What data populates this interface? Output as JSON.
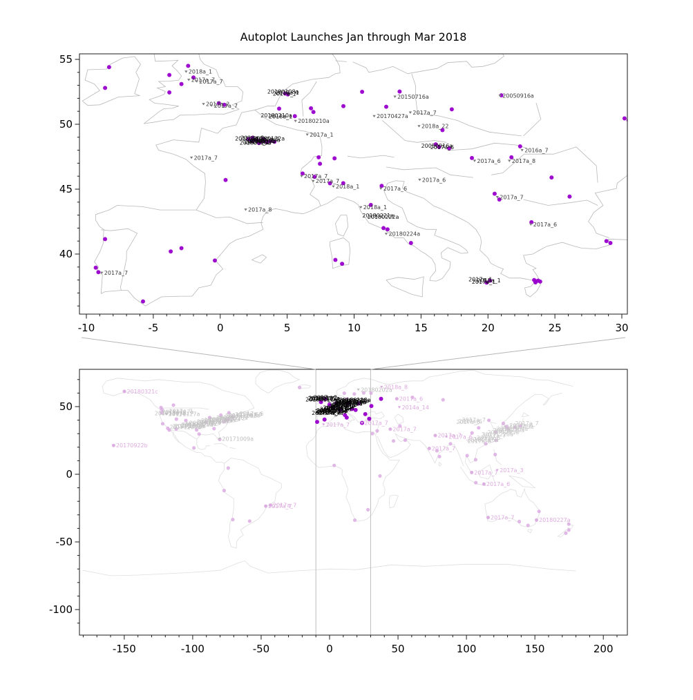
{
  "title": "Autoplot Launches Jan through Mar 2018",
  "chart_data": [
    {
      "type": "scatter",
      "name": "europe-detail-map",
      "title": "Autoplot Launches Jan through Mar 2018",
      "xlabel": "",
      "ylabel": "",
      "xlim": [
        -10.5,
        30.4
      ],
      "ylim": [
        35.4,
        55.4
      ],
      "xticks": [
        -10,
        -5,
        0,
        5,
        10,
        15,
        20,
        25,
        30
      ],
      "yticks": [
        40,
        45,
        50,
        55
      ],
      "grid": false,
      "marker_color": "#9900cc",
      "label_color": "#3a3a3a",
      "dots": [
        [
          -8.3,
          54.4
        ],
        [
          -8.6,
          52.8
        ],
        [
          -2.4,
          54.5
        ],
        [
          -3.8,
          53.8
        ],
        [
          -2.9,
          53.1
        ],
        [
          -3.8,
          52.45
        ],
        [
          -2.0,
          53.6
        ],
        [
          0.3,
          51.5
        ],
        [
          -0.1,
          51.62
        ],
        [
          4.85,
          52.37
        ],
        [
          5.05,
          52.3
        ],
        [
          4.4,
          51.2
        ],
        [
          5.57,
          50.63
        ],
        [
          6.78,
          51.23
        ],
        [
          6.96,
          50.94
        ],
        [
          9.2,
          51.4
        ],
        [
          10.6,
          52.5
        ],
        [
          12.4,
          51.35
        ],
        [
          13.4,
          52.52
        ],
        [
          17.3,
          51.15
        ],
        [
          16.6,
          49.55
        ],
        [
          21.0,
          52.23
        ],
        [
          7.35,
          47.45
        ],
        [
          7.45,
          46.95
        ],
        [
          8.54,
          47.37
        ],
        [
          0.4,
          45.7
        ],
        [
          8.2,
          45.45
        ],
        [
          9.19,
          45.46
        ],
        [
          12.06,
          45.25
        ],
        [
          11.25,
          43.78
        ],
        [
          12.2,
          42.0
        ],
        [
          12.5,
          41.9
        ],
        [
          14.25,
          40.85
        ],
        [
          9.1,
          39.25
        ],
        [
          8.6,
          39.55
        ],
        [
          24.75,
          45.9
        ],
        [
          26.1,
          44.43
        ],
        [
          23.25,
          42.45
        ],
        [
          28.85,
          41.0
        ],
        [
          29.15,
          40.85
        ],
        [
          30.2,
          50.45
        ],
        [
          30.5,
          50.3
        ],
        [
          -3.7,
          40.2
        ],
        [
          -2.9,
          40.45
        ],
        [
          -0.4,
          39.5
        ],
        [
          -5.77,
          36.35
        ],
        [
          -8.6,
          41.15
        ],
        [
          -9.3,
          38.95
        ],
        [
          -9.1,
          38.6
        ],
        [
          16.35,
          48.25
        ],
        [
          17.1,
          48.15
        ],
        [
          16.1,
          48.45
        ],
        [
          18.8,
          47.4
        ],
        [
          21.75,
          47.45
        ],
        [
          22.4,
          48.3
        ],
        [
          20.5,
          44.65
        ],
        [
          20.85,
          44.2
        ],
        [
          19.9,
          37.8
        ],
        [
          20.15,
          37.95
        ],
        [
          23.45,
          38.0
        ],
        [
          23.6,
          37.9
        ],
        [
          23.75,
          37.95
        ],
        [
          23.55,
          37.82
        ],
        [
          23.9,
          37.88
        ],
        [
          6.15,
          46.2
        ],
        [
          7.05,
          45.95
        ],
        [
          2.1,
          48.85
        ],
        [
          2.4,
          48.95
        ],
        [
          2.6,
          48.8
        ],
        [
          2.8,
          48.72
        ],
        [
          3.05,
          48.66
        ],
        [
          3.3,
          48.72
        ],
        [
          3.5,
          48.62
        ],
        [
          3.75,
          48.7
        ],
        [
          2.35,
          48.7
        ],
        [
          2.9,
          48.55
        ],
        [
          3.2,
          48.85
        ],
        [
          4.05,
          48.65
        ]
      ],
      "labels": [
        [
          -2.55,
          54.05,
          "2018a_1"
        ],
        [
          -2.35,
          53.42,
          "2017a_7"
        ],
        [
          -1.75,
          53.3,
          "2017a_7"
        ],
        [
          -1.25,
          51.55,
          "2017a_2"
        ],
        [
          -0.65,
          51.43,
          "2017a_7"
        ],
        [
          -2.15,
          47.42,
          "2017a_7"
        ],
        [
          5.62,
          50.25,
          "20180210a"
        ],
        [
          6.5,
          49.2,
          "2017a_1"
        ],
        [
          6.08,
          46.0,
          "2017a_7"
        ],
        [
          6.95,
          45.62,
          "2017a_7"
        ],
        [
          8.45,
          45.2,
          "2018a_1"
        ],
        [
          10.5,
          43.6,
          "2018a_1"
        ],
        [
          12.4,
          41.55,
          "20180224a"
        ],
        [
          1.9,
          43.42,
          "2017a_8"
        ],
        [
          13.05,
          52.12,
          "20150716a"
        ],
        [
          11.5,
          50.62,
          "20170427a"
        ],
        [
          14.2,
          50.9,
          "2017a_7"
        ],
        [
          14.85,
          49.85,
          "2018a_22"
        ],
        [
          20.9,
          52.2,
          "20050916a"
        ],
        [
          22.55,
          48.0,
          "2016a_7"
        ],
        [
          19.0,
          47.18,
          "2017a_6"
        ],
        [
          21.6,
          47.18,
          "2017a_8"
        ],
        [
          20.7,
          44.38,
          "2017a_7"
        ],
        [
          23.2,
          42.28,
          "2017a_6"
        ],
        [
          14.9,
          45.72,
          "2017a_6"
        ],
        [
          12.0,
          45.05,
          "2017a_6"
        ],
        [
          -8.85,
          38.55,
          "2017a_7"
        ]
      ],
      "clusters": [
        {
          "lon": 3.0,
          "lat": 48.62,
          "w": 28,
          "h": 8,
          "color": "#0a0a0a",
          "labels": [
            "20180117a",
            "2018a_1",
            "20180118a",
            "2017a_7",
            "20180119a",
            "2018a_2",
            "20180120a",
            "2017a_1",
            "20180122a",
            "2018a_12"
          ]
        },
        {
          "lon": 4.95,
          "lat": 52.3,
          "w": 10,
          "h": 4,
          "color": "#111111",
          "labels": [
            "20180108a",
            "2018a_1",
            "2017a_7"
          ]
        },
        {
          "lon": 4.45,
          "lat": 50.45,
          "w": 10,
          "h": 4,
          "color": "#111111",
          "labels": [
            "20180210a",
            "2018a_1"
          ]
        },
        {
          "lon": 16.5,
          "lat": 48.1,
          "w": 12,
          "h": 5,
          "color": "#111111",
          "labels": [
            "20050916a",
            "2017a_6"
          ]
        },
        {
          "lon": 12.1,
          "lat": 42.72,
          "w": 12,
          "h": 5,
          "color": "#111111",
          "labels": [
            "20180221a",
            "20180222a"
          ]
        },
        {
          "lon": 19.95,
          "lat": 37.82,
          "w": 20,
          "h": 5,
          "color": "#0a0a0a",
          "labels": [
            "2017a_1",
            "2018a_1",
            "2017a_1"
          ]
        }
      ]
    },
    {
      "type": "scatter",
      "name": "world-context-map",
      "xlim": [
        -183,
        218
      ],
      "ylim": [
        -119,
        78
      ],
      "xticks": [
        -150,
        -100,
        -50,
        0,
        50,
        100,
        150,
        200
      ],
      "yticks": [
        50,
        0,
        -50,
        -100
      ],
      "grid": false,
      "zoom_region_lon": [
        -10,
        30
      ],
      "marker_color_active": "#9900cc",
      "marker_color_faded": "#d9a7e0",
      "label_color_faded": "#ddaade",
      "label_color_gray": "#bdbdbd",
      "dots_active": [
        [
          -9.1,
          38.7
        ],
        [
          -6.26,
          53.35
        ],
        [
          -3.7,
          40.42
        ],
        [
          -3.19,
          55.6
        ],
        [
          -0.1,
          51.5
        ],
        [
          2.35,
          48.86
        ],
        [
          4.9,
          52.37
        ],
        [
          7.6,
          47.56
        ],
        [
          13.4,
          52.52
        ],
        [
          12.5,
          41.9
        ],
        [
          16.37,
          48.21
        ],
        [
          19.05,
          47.5
        ],
        [
          21.0,
          52.23
        ],
        [
          23.73,
          37.98
        ],
        [
          26.1,
          44.43
        ],
        [
          28.98,
          41.02
        ],
        [
          30.52,
          50.45
        ],
        [
          37.62,
          55.75
        ],
        [
          11.25,
          43.78
        ]
      ],
      "dots_faded": [
        [
          -149.9,
          61.2
        ],
        [
          -157.8,
          21.3
        ],
        [
          -123.1,
          49.28
        ],
        [
          -122.33,
          47.6
        ],
        [
          -122.68,
          45.52
        ],
        [
          -121.89,
          37.34
        ],
        [
          -118.24,
          34.05
        ],
        [
          -117.16,
          32.72
        ],
        [
          -111.89,
          40.76
        ],
        [
          -104.99,
          39.74
        ],
        [
          -112.07,
          33.45
        ],
        [
          -114.07,
          51.05
        ],
        [
          -97.14,
          32.75
        ],
        [
          -95.37,
          29.76
        ],
        [
          -90.2,
          38.63
        ],
        [
          -87.63,
          41.88
        ],
        [
          -84.39,
          33.75
        ],
        [
          -80.19,
          25.76
        ],
        [
          -79.38,
          43.65
        ],
        [
          -77.04,
          38.9
        ],
        [
          -75.17,
          39.95
        ],
        [
          -74.01,
          40.71
        ],
        [
          -71.06,
          42.36
        ],
        [
          -73.57,
          45.5
        ],
        [
          -99.13,
          19.43
        ],
        [
          -74.07,
          4.61
        ],
        [
          -77.03,
          -12.04
        ],
        [
          -46.63,
          -23.55
        ],
        [
          -43.2,
          -22.9
        ],
        [
          -58.38,
          -34.6
        ],
        [
          -70.65,
          -33.45
        ],
        [
          10.75,
          59.91
        ],
        [
          18.07,
          59.33
        ],
        [
          24.94,
          60.17
        ],
        [
          12.57,
          55.69
        ],
        [
          -21.9,
          64.15
        ],
        [
          30.3,
          59.94
        ],
        [
          31.24,
          30.06
        ],
        [
          34.78,
          32.08
        ],
        [
          36.82,
          -1.29
        ],
        [
          3.38,
          6.52
        ],
        [
          28.05,
          -26.2
        ],
        [
          18.42,
          -33.93
        ],
        [
          51.39,
          35.69
        ],
        [
          55.27,
          25.2
        ],
        [
          44.37,
          33.31
        ],
        [
          46.68,
          24.63
        ],
        [
          49.11,
          55.79
        ],
        [
          60.6,
          56.84
        ],
        [
          82.93,
          55.03
        ],
        [
          77.21,
          28.64
        ],
        [
          72.85,
          19.08
        ],
        [
          80.27,
          13.09
        ],
        [
          88.36,
          22.57
        ],
        [
          78.48,
          17.38
        ],
        [
          100.5,
          13.75
        ],
        [
          106.7,
          10.78
        ],
        [
          103.85,
          1.3
        ],
        [
          106.85,
          -6.22
        ],
        [
          112.75,
          -7.25
        ],
        [
          121.0,
          14.6
        ],
        [
          116.4,
          39.9
        ],
        [
          121.47,
          31.23
        ],
        [
          114.06,
          22.54
        ],
        [
          121.56,
          25.03
        ],
        [
          126.98,
          37.57
        ],
        [
          129.08,
          35.18
        ],
        [
          139.69,
          35.69
        ],
        [
          135.5,
          34.69
        ],
        [
          130.4,
          33.59
        ],
        [
          108.94,
          34.34
        ],
        [
          104.07,
          30.57
        ],
        [
          115.86,
          -31.95
        ],
        [
          138.6,
          -34.93
        ],
        [
          144.96,
          -37.81
        ],
        [
          151.21,
          -33.87
        ],
        [
          153.02,
          -27.47
        ],
        [
          174.76,
          -36.85
        ],
        [
          174.78,
          -41.29
        ],
        [
          172.64,
          -43.53
        ]
      ],
      "labels_faded": [
        [
          -149.9,
          61.2,
          "20180321c"
        ],
        [
          -157.8,
          21.3,
          "20170922b"
        ],
        [
          -46.63,
          -23.55,
          "2017a_7"
        ],
        [
          -43.2,
          -22.9,
          "2017a_7"
        ],
        [
          38.0,
          64.5,
          "2018a_8"
        ],
        [
          49.1,
          55.8,
          "2017a_6"
        ],
        [
          51.0,
          49.5,
          "2014a_14"
        ],
        [
          -4.42,
          36.72,
          "2017a_7"
        ],
        [
          23.7,
          37.9,
          "2017a_7"
        ],
        [
          44.37,
          33.31,
          "2017a_7"
        ],
        [
          77.21,
          28.64,
          "2017a_7"
        ],
        [
          85.3,
          27.7,
          "2017a_6"
        ],
        [
          72.85,
          19.08,
          "2017a_7"
        ],
        [
          103.85,
          1.3,
          "2017a_7"
        ],
        [
          122.5,
          3.0,
          "2017a_3"
        ],
        [
          112.75,
          -7.25,
          "2017a_6"
        ],
        [
          115.86,
          -31.95,
          "2017a_7"
        ],
        [
          151.21,
          -33.87,
          "20180227a"
        ]
      ],
      "labels_gray": [
        [
          -80.3,
          26.2,
          "20171009a"
        ],
        [
          21.0,
          62.5,
          "20180202a"
        ],
        [
          -119.5,
          44.5,
          "20171127a"
        ]
      ],
      "clusters": [
        {
          "lon": -86,
          "lat": 39.5,
          "w": 120,
          "h": 24,
          "color": "#c2c2c2",
          "labels": [
            "20171109a",
            "2017a_7",
            "20171010a",
            "20171009a",
            "2017a_6",
            "20180117a",
            "2018a_1",
            "20171023a",
            "2017a_60",
            "20171110a",
            "20171201a",
            "2017a_7",
            "20171009a",
            "2018a_1",
            "20171120a",
            "2017a_6",
            "20171107a",
            "20171130a",
            "2017a_7",
            "20171115a",
            "20171018a",
            "2017a_6",
            "20171025a",
            "20171011a"
          ]
        },
        {
          "lon": 124,
          "lat": 31.5,
          "w": 90,
          "h": 34,
          "color": "#c6c6c6",
          "labels": [
            "2017a_6",
            "2017a_7",
            "20180116a",
            "2017a_6",
            "20171228a",
            "2017a_7",
            "20180104a",
            "2017a_6",
            "2017a_7",
            "20171215a",
            "2017a_6",
            "20180109a",
            "2017a_7",
            "2017a_6",
            "20171220a",
            "2017a_7"
          ]
        },
        {
          "lon": 6.5,
          "lat": 49.8,
          "w": 50,
          "h": 24,
          "color": "#000000",
          "labels": [
            "20180117a",
            "2018a_1",
            "2017a_7",
            "20180210a",
            "2018a_2",
            "20180122a",
            "2017a_6",
            "20150716a",
            "20180224a",
            "2017a_1",
            "20170427a",
            "2018a_22",
            "20050916a",
            "2016a_7",
            "2017a_8",
            "20180216a",
            "20180108a",
            "20180119a",
            "2017a_2",
            "20180120a",
            "2018a_12",
            "20180118a",
            "2017a_7",
            "2018a_1",
            "20180221a",
            "2017a_6",
            "20180131a",
            "2018a_2",
            "20180213a",
            "2017a_7"
          ]
        }
      ]
    }
  ]
}
